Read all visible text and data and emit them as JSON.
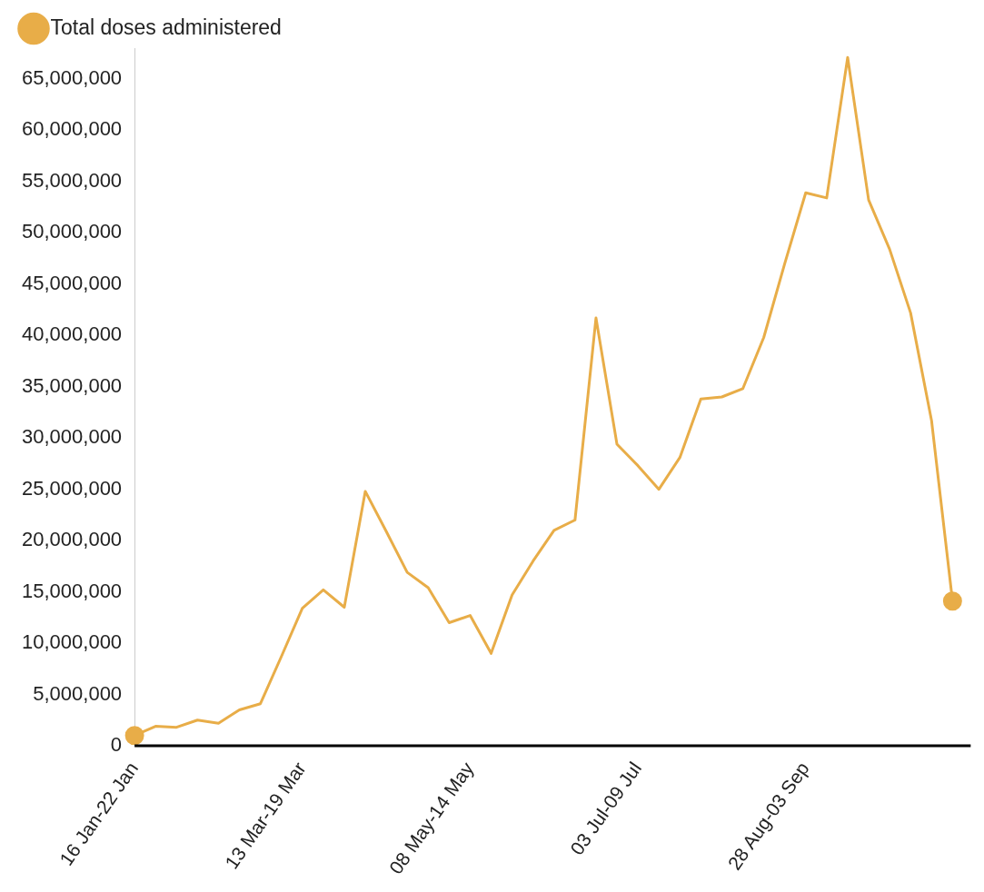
{
  "chart_data": {
    "type": "line",
    "categories": [
      "16 Jan-22 Jan",
      null,
      null,
      null,
      null,
      null,
      null,
      null,
      "13 Mar-19 Mar",
      null,
      null,
      null,
      null,
      null,
      null,
      null,
      "08 May-14 May",
      null,
      null,
      null,
      null,
      null,
      null,
      null,
      "03 Jul-09 Jul",
      null,
      null,
      null,
      null,
      null,
      null,
      null,
      "28 Aug-03 Sep",
      null,
      null,
      null,
      null,
      null,
      null,
      null
    ],
    "series": [
      {
        "name": "Total doses administered",
        "color": "#e8ad48",
        "values": [
          1000000,
          1900000,
          1800000,
          2500000,
          2200000,
          3500000,
          4100000,
          8700000,
          13400000,
          15200000,
          13500000,
          24800000,
          20900000,
          16900000,
          15400000,
          12000000,
          12700000,
          9000000,
          14700000,
          18000000,
          21000000,
          22000000,
          41700000,
          29400000,
          27300000,
          25000000,
          28100000,
          33800000,
          34000000,
          34800000,
          39800000,
          47000000,
          53900000,
          53400000,
          67100000,
          53200000,
          48400000,
          42200000,
          31700000,
          14100000
        ]
      }
    ],
    "ylim": [
      0,
      68000000
    ],
    "yticks": [
      0,
      {
        "value": 5000000,
        "label": "5,000,000"
      },
      {
        "value": 10000000,
        "label": "10,000,000"
      },
      {
        "value": 15000000,
        "label": "15,000,000"
      },
      {
        "value": 20000000,
        "label": "20,000,000"
      },
      {
        "value": 25000000,
        "label": "25,000,000"
      },
      {
        "value": 30000000,
        "label": "30,000,000"
      },
      {
        "value": 35000000,
        "label": "35,000,000"
      },
      {
        "value": 40000000,
        "label": "40,000,000"
      },
      {
        "value": 45000000,
        "label": "45,000,000"
      },
      {
        "value": 50000000,
        "label": "50,000,000"
      },
      {
        "value": 55000000,
        "label": "55,000,000"
      },
      {
        "value": 60000000,
        "label": "60,000,000"
      },
      {
        "value": 65000000,
        "label": "65,000,000"
      }
    ],
    "grid": false,
    "legend": "top left",
    "line_style": "solid"
  }
}
